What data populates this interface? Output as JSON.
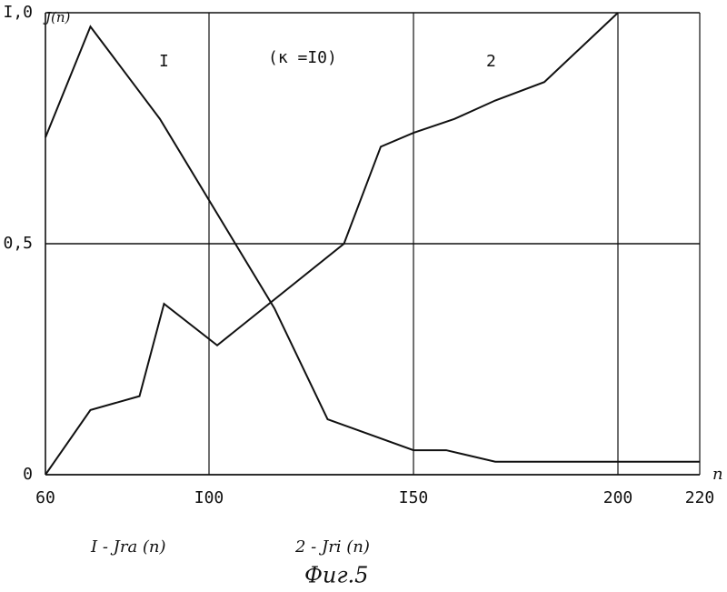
{
  "chart_data": {
    "type": "line",
    "y_label": "J(n)",
    "x_label": "n",
    "annotations": [
      "I",
      "(к =I0)",
      "2"
    ],
    "caption": "Фиг.5",
    "x": [
      60,
      71,
      88,
      116,
      129,
      150,
      158,
      170,
      220
    ],
    "series": [
      {
        "name": "I - Jra (n)",
        "color": "#111111",
        "values": [
          0.73,
          0.97,
          0.77,
          0.36,
          0.12,
          0.053,
          0.053,
          0.028,
          0.028
        ]
      }
    ],
    "x2": [
      60,
      71,
      83,
      89,
      102,
      133,
      142,
      150,
      160,
      170,
      182,
      200
    ],
    "series2": {
      "name": "2 - Jri (n)",
      "color": "#111111",
      "values": [
        0,
        0.14,
        0.17,
        0.37,
        0.28,
        0.5,
        0.71,
        0.74,
        0.77,
        0.81,
        0.85,
        1.0
      ]
    },
    "xlim": [
      60,
      220
    ],
    "ylim": [
      0,
      1
    ],
    "xticks": [
      60,
      {
        "value": 100,
        "label": "I00"
      },
      {
        "value": 150,
        "label": "I50"
      },
      200,
      220
    ],
    "yticks": [
      0,
      {
        "value": 0.5,
        "label": "0,5"
      },
      {
        "value": 1,
        "label": "I,0"
      }
    ],
    "grid": true
  }
}
